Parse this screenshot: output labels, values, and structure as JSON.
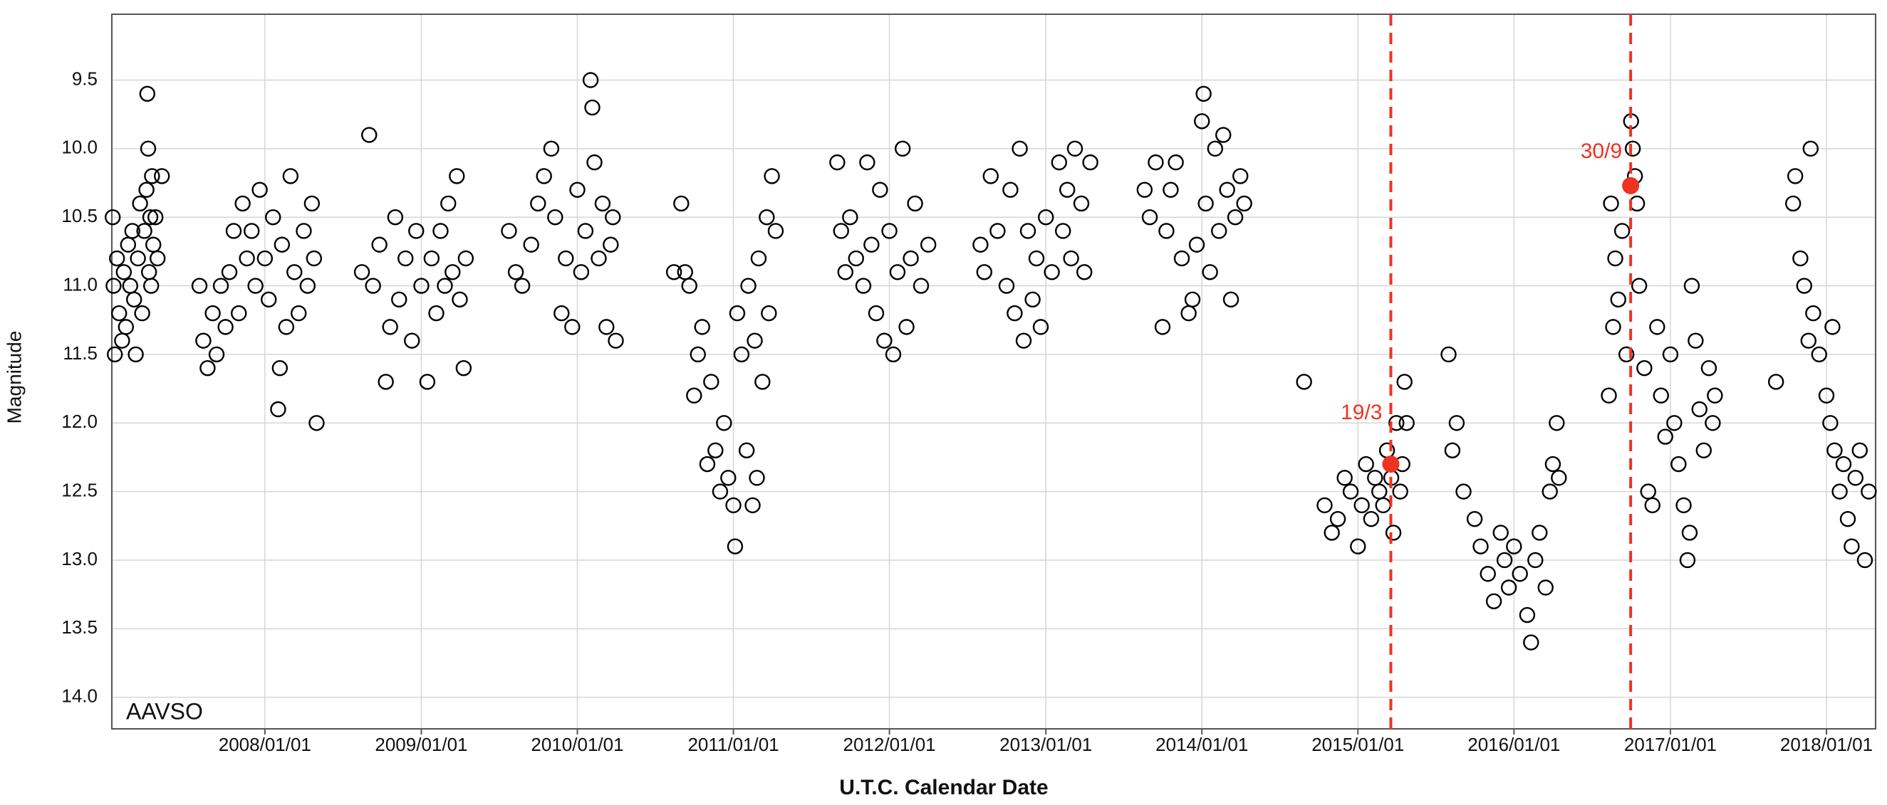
{
  "chart_data": {
    "type": "scatter",
    "x_label": "U.T.C. Calendar Date",
    "y_label": "Magnitude",
    "annotation": "AAVSO",
    "grid": true,
    "y_inverted": true,
    "color": "#000000",
    "xlim": [
      "2007/01/08",
      "2018/04/26"
    ],
    "xticks": [
      "2008/01/01",
      "2009/01/01",
      "2010/01/01",
      "2011/01/01",
      "2012/01/01",
      "2013/01/01",
      "2014/01/01",
      "2015/01/01",
      "2016/01/01",
      "2017/01/01",
      "2018/01/01"
    ],
    "ylim": [
      9.02,
      14.23
    ],
    "yticks": [
      9.5,
      {
        "value": 10,
        "label": "10.0"
      },
      10.5,
      {
        "value": 11,
        "label": "11.0"
      },
      11.5,
      {
        "value": 12,
        "label": "12.0"
      },
      12.5,
      {
        "value": 13,
        "label": "13.0"
      },
      13.5,
      {
        "value": 14,
        "label": "14.0"
      }
    ],
    "x": [
      "2007/01/10",
      "2007/01/12",
      "2007/01/15",
      "2007/01/20",
      "2007/01/25",
      "2007/02/01",
      "2007/02/05",
      "2007/02/10",
      "2007/02/15",
      "2007/02/20",
      "2007/02/25",
      "2007/03/01",
      "2007/03/05",
      "2007/03/10",
      "2007/03/15",
      "2007/03/20",
      "2007/03/25",
      "2007/03/30",
      "2007/04/01",
      "2007/04/03",
      "2007/04/05",
      "2007/04/08",
      "2007/04/10",
      "2007/04/12",
      "2007/04/15",
      "2007/04/20",
      "2007/04/25",
      "2007/05/05",
      "2007/08/01",
      "2007/08/10",
      "2007/08/20",
      "2007/09/01",
      "2007/09/10",
      "2007/09/20",
      "2007/10/01",
      "2007/10/10",
      "2007/10/20",
      "2007/11/01",
      "2007/11/10",
      "2007/11/20",
      "2007/12/01",
      "2007/12/10",
      "2007/12/20",
      "2008/01/01",
      "2008/01/10",
      "2008/01/20",
      "2008/02/01",
      "2008/02/05",
      "2008/02/10",
      "2008/02/20",
      "2008/03/01",
      "2008/03/10",
      "2008/03/20",
      "2008/04/01",
      "2008/04/10",
      "2008/04/20",
      "2008/05/01",
      "2008/04/25",
      "2008/08/15",
      "2008/09/01",
      "2008/09/10",
      "2008/09/25",
      "2008/10/10",
      "2008/10/20",
      "2008/11/01",
      "2008/11/10",
      "2008/11/25",
      "2008/12/10",
      "2008/12/20",
      "2009/01/01",
      "2009/01/15",
      "2009/01/25",
      "2009/02/05",
      "2009/02/15",
      "2009/02/25",
      "2009/03/05",
      "2009/03/15",
      "2009/03/25",
      "2009/04/01",
      "2009/04/10",
      "2009/04/15",
      "2009/07/25",
      "2009/08/10",
      "2009/08/25",
      "2009/09/15",
      "2009/10/01",
      "2009/10/15",
      "2009/11/01",
      "2009/11/10",
      "2009/11/25",
      "2009/12/05",
      "2009/12/20",
      "2010/01/01",
      "2010/01/10",
      "2010/01/20",
      "2010/02/01",
      "2010/02/05",
      "2010/02/10",
      "2010/02/20",
      "2010/03/01",
      "2010/03/10",
      "2010/03/20",
      "2010/04/01",
      "2010/03/25",
      "2010/08/15",
      "2010/09/01",
      "2010/09/10",
      "2010/09/20",
      "2010/10/01",
      "2010/10/10",
      "2010/10/20",
      "2010/11/01",
      "2010/11/10",
      "2010/11/20",
      "2010/12/01",
      "2010/12/10",
      "2010/12/20",
      "2011/01/01",
      "2011/01/05",
      "2011/01/10",
      "2011/01/20",
      "2011/02/01",
      "2011/02/05",
      "2011/02/15",
      "2011/02/20",
      "2011/03/01",
      "2011/03/10",
      "2011/03/20",
      "2011/04/01",
      "2011/04/10",
      "2011/03/25",
      "2011/02/25",
      "2011/09/01",
      "2011/09/10",
      "2011/09/20",
      "2011/10/01",
      "2011/10/15",
      "2011/11/01",
      "2011/11/10",
      "2011/11/20",
      "2011/12/01",
      "2011/12/10",
      "2011/12/20",
      "2012/01/01",
      "2012/01/10",
      "2012/01/20",
      "2012/02/01",
      "2012/02/10",
      "2012/02/20",
      "2012/03/01",
      "2012/03/15",
      "2012/04/01",
      "2012/08/01",
      "2012/08/10",
      "2012/08/25",
      "2012/09/10",
      "2012/10/01",
      "2012/10/10",
      "2012/10/20",
      "2012/11/01",
      "2012/11/10",
      "2012/11/20",
      "2012/12/01",
      "2012/12/10",
      "2012/12/20",
      "2013/01/01",
      "2013/01/15",
      "2013/02/01",
      "2013/02/10",
      "2013/02/20",
      "2013/03/01",
      "2013/03/10",
      "2013/03/25",
      "2013/04/15",
      "2013/04/01",
      "2013/08/20",
      "2013/09/01",
      "2013/09/15",
      "2013/10/01",
      "2013/10/10",
      "2013/10/20",
      "2013/11/01",
      "2013/11/15",
      "2013/12/01",
      "2013/12/10",
      "2013/12/20",
      "2014/01/01",
      "2014/01/05",
      "2014/01/10",
      "2014/01/20",
      "2014/02/01",
      "2014/02/10",
      "2014/02/20",
      "2014/03/01",
      "2014/03/10",
      "2014/03/20",
      "2014/04/01",
      "2014/04/10",
      "2014/08/28",
      "2014/10/15",
      "2014/11/01",
      "2014/11/15",
      "2014/12/01",
      "2014/12/15",
      "2015/01/01",
      "2015/01/10",
      "2015/01/20",
      "2015/02/01",
      "2015/02/10",
      "2015/02/20",
      "2015/03/01",
      "2015/03/10",
      "2015/03/20",
      "2015/03/25",
      "2015/04/01",
      "2015/04/10",
      "2015/04/15",
      "2015/04/20",
      "2015/04/25",
      "2015/08/01",
      "2015/08/10",
      "2015/08/20",
      "2015/09/05",
      "2015/10/01",
      "2015/10/15",
      "2015/11/01",
      "2015/11/15",
      "2015/12/01",
      "2015/12/10",
      "2015/12/20",
      "2016/01/01",
      "2016/01/15",
      "2016/02/01",
      "2016/02/10",
      "2016/02/20",
      "2016/03/01",
      "2016/03/15",
      "2016/03/25",
      "2016/04/01",
      "2016/04/10",
      "2016/04/15",
      "2016/08/10",
      "2016/08/15",
      "2016/08/20",
      "2016/08/25",
      "2016/09/01",
      "2016/09/10",
      "2016/09/20",
      "2016/10/01",
      "2016/10/05",
      "2016/10/10",
      "2016/10/15",
      "2016/10/20",
      "2016/11/01",
      "2016/11/10",
      "2016/11/20",
      "2016/12/01",
      "2016/12/10",
      "2016/12/20",
      "2017/01/01",
      "2017/01/10",
      "2017/01/20",
      "2017/02/01",
      "2017/02/10",
      "2017/02/15",
      "2017/02/20",
      "2017/03/01",
      "2017/03/10",
      "2017/03/20",
      "2017/04/01",
      "2017/04/10",
      "2017/04/15",
      "2017/09/05",
      "2017/10/15",
      "2017/10/20",
      "2017/11/01",
      "2017/11/10",
      "2017/11/20",
      "2017/11/25",
      "2017/12/01",
      "2017/12/15",
      "2018/01/01",
      "2018/01/10",
      "2018/01/15",
      "2018/01/20",
      "2018/02/01",
      "2018/02/10",
      "2018/02/20",
      "2018/03/01",
      "2018/03/10",
      "2018/03/20",
      "2018/04/01",
      "2018/04/10"
    ],
    "values": [
      10.5,
      11.0,
      11.5,
      10.8,
      11.2,
      11.4,
      10.9,
      11.3,
      10.7,
      11.0,
      10.6,
      11.1,
      11.5,
      10.8,
      10.4,
      11.2,
      10.6,
      10.3,
      9.6,
      10.0,
      10.9,
      10.5,
      11.0,
      10.2,
      10.7,
      10.5,
      10.8,
      10.2,
      11.0,
      11.4,
      11.6,
      11.2,
      11.5,
      11.0,
      11.3,
      10.9,
      10.6,
      11.2,
      10.4,
      10.8,
      10.6,
      11.0,
      10.3,
      10.8,
      11.1,
      10.5,
      11.9,
      11.6,
      10.7,
      11.3,
      10.2,
      10.9,
      11.2,
      10.6,
      11.0,
      10.4,
      12.0,
      10.8,
      10.9,
      9.9,
      11.0,
      10.7,
      11.7,
      11.3,
      10.5,
      11.1,
      10.8,
      11.4,
      10.6,
      11.0,
      11.7,
      10.8,
      11.2,
      10.6,
      11.0,
      10.4,
      10.9,
      10.2,
      11.1,
      11.6,
      10.8,
      10.6,
      10.9,
      11.0,
      10.7,
      10.4,
      10.2,
      10.0,
      10.5,
      11.2,
      10.8,
      11.3,
      10.3,
      10.9,
      10.6,
      9.5,
      9.7,
      10.1,
      10.8,
      10.4,
      11.3,
      10.7,
      11.4,
      10.5,
      10.9,
      10.4,
      10.9,
      11.0,
      11.8,
      11.5,
      11.3,
      12.3,
      11.7,
      12.2,
      12.5,
      12.0,
      12.4,
      12.6,
      12.9,
      11.2,
      11.5,
      12.2,
      11.0,
      12.6,
      11.4,
      10.8,
      11.7,
      10.5,
      10.2,
      10.6,
      11.2,
      12.4,
      10.1,
      10.6,
      10.9,
      10.5,
      10.8,
      11.0,
      10.1,
      10.7,
      11.2,
      10.3,
      11.4,
      10.6,
      11.5,
      10.9,
      10.0,
      11.3,
      10.8,
      10.4,
      11.0,
      10.7,
      10.7,
      10.9,
      10.2,
      10.6,
      11.0,
      10.3,
      11.2,
      10.0,
      11.4,
      10.6,
      11.1,
      10.8,
      11.3,
      10.5,
      10.9,
      10.1,
      10.6,
      10.3,
      10.8,
      10.0,
      10.4,
      10.1,
      10.9,
      10.3,
      10.5,
      10.1,
      11.3,
      10.6,
      10.3,
      10.1,
      10.8,
      11.2,
      11.1,
      10.7,
      9.8,
      9.6,
      10.4,
      10.9,
      10.0,
      10.6,
      9.9,
      10.3,
      11.1,
      10.5,
      10.2,
      10.4,
      11.7,
      12.6,
      12.8,
      12.7,
      12.4,
      12.5,
      12.9,
      12.6,
      12.3,
      12.7,
      12.4,
      12.5,
      12.6,
      12.2,
      12.4,
      12.8,
      12.0,
      12.5,
      12.3,
      11.7,
      12.0,
      11.5,
      12.2,
      12.0,
      12.5,
      12.7,
      12.9,
      13.1,
      13.3,
      12.8,
      13.0,
      13.2,
      12.9,
      13.1,
      13.4,
      13.6,
      13.0,
      12.8,
      13.2,
      12.5,
      12.3,
      12.0,
      12.4,
      11.8,
      10.4,
      11.3,
      10.8,
      11.1,
      10.6,
      11.5,
      9.8,
      10.0,
      10.2,
      10.4,
      11.0,
      11.6,
      12.5,
      12.6,
      11.3,
      11.8,
      12.1,
      11.5,
      12.0,
      12.3,
      12.6,
      13.0,
      12.8,
      11.0,
      11.4,
      11.9,
      12.2,
      11.6,
      12.0,
      11.8,
      11.7,
      10.4,
      10.2,
      10.8,
      11.0,
      11.4,
      10.0,
      11.2,
      11.5,
      11.8,
      12.0,
      11.3,
      12.2,
      12.5,
      12.3,
      12.7,
      12.9,
      12.4,
      12.2,
      13.0,
      12.5
    ],
    "highlights": [
      {
        "x": "2015/03/19",
        "value": 12.3,
        "label": "19/3",
        "color": "#ee3322"
      },
      {
        "x": "2016/09/30",
        "value": 10.27,
        "label": "30/9",
        "color": "#ee3322"
      }
    ]
  }
}
